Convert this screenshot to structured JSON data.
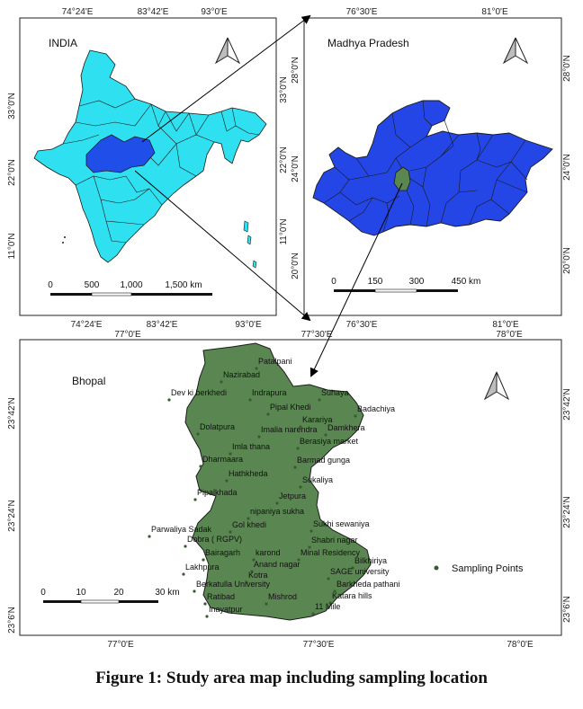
{
  "panels": {
    "india": {
      "title": "INDIA",
      "top_ticks": [
        "74°24'E",
        "83°42'E",
        "93°0'E"
      ],
      "bottom_ticks": [
        "74°24'E",
        "83°42'E",
        "93°0'E"
      ],
      "left_ticks": [
        "33°0'N",
        "22°0'N",
        "11°0'N"
      ],
      "right_ticks": [
        "33°0'N",
        "22°0'N",
        "11°0'N"
      ],
      "scale_labels": [
        "0",
        "500",
        "1,000",
        "1,500 km"
      ]
    },
    "mp": {
      "title": "Madhya Pradesh",
      "top_ticks": [
        "76°30'E",
        "81°0'E"
      ],
      "bottom_ticks": [
        "76°30'E",
        "81°0'E"
      ],
      "left_ticks": [
        "28°0'N",
        "24°0'N",
        "20°0'N"
      ],
      "right_ticks": [
        "28°0'N",
        "24°0'N",
        "20°0'N"
      ],
      "scale_labels": [
        "0",
        "150",
        "300",
        "450 km"
      ]
    },
    "bhopal": {
      "title": "Bhopal",
      "top_ticks": [
        "77°0'E",
        "77°30'E",
        "78°0'E"
      ],
      "bottom_ticks": [
        "77°0'E",
        "77°30'E",
        "78°0'E"
      ],
      "left_ticks": [
        "23°42'N",
        "23°24'N",
        "23°6'N"
      ],
      "right_ticks": [
        "23°42'N",
        "23°24'N",
        "23°6'N"
      ],
      "scale_labels": [
        "0",
        "10",
        "20",
        "30 km"
      ],
      "legend_label": "Sampling Points",
      "places": [
        "Patalpani",
        "Nazirabad",
        "Dev ki berkhedi",
        "Indrapura",
        "Suhaya",
        "Pipal Khedi",
        "Badachiya",
        "Karariya",
        "Damkhera",
        "Dolatpura",
        "Imalia narendra",
        "Berasiya market",
        "Imla thana",
        "Dharmaara",
        "Barmad gunga",
        "Hathkheda",
        "Sukaliya",
        "Pipalkhada",
        "Jetpura",
        "nipaniya sukha",
        "Sukhi sewaniya",
        "Parwaliya Sadak",
        "Gol khedi",
        "Dobra ( RGPV)",
        "Shabri nagar",
        "Bairagarh",
        "karond",
        "Minal Residency",
        "Bilkhiriya",
        "Anand nagar",
        "Lakhpura",
        "SAGE university",
        "Kotra",
        "Berkatulla University",
        "Barkheda pathani",
        "Ratibad",
        "Katara hills",
        "Mishrod",
        "Inayatpur",
        "11 Mile"
      ]
    }
  },
  "colors": {
    "india_fill": "#2fe0f0",
    "mp_highlight": "#1f4fe8",
    "mp_fill": "#2446e6",
    "bhopal_fill": "#5a8751",
    "border": "#1a1a1a"
  },
  "caption": "Figure 1: Study area map including sampling location"
}
